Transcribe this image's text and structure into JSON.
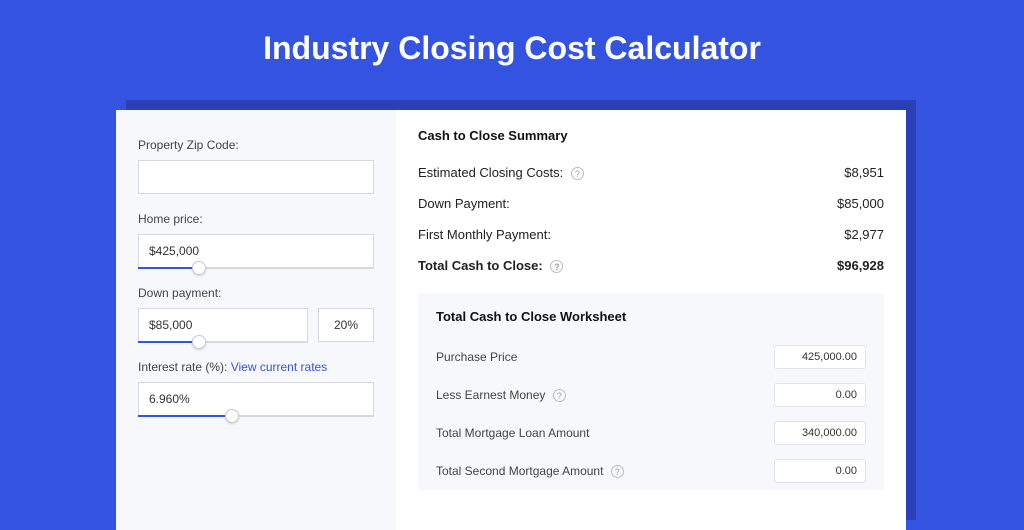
{
  "colors": {
    "page_bg": "#3453e0",
    "card_shadow": "#2a3fb8",
    "card_bg": "#ffffff",
    "panel_bg": "#f6f8fc",
    "input_border": "#d5d8de",
    "accent": "#3453e0",
    "text": "#333333",
    "muted": "#9aa0aa"
  },
  "title": "Industry Closing Cost Calculator",
  "left": {
    "zip": {
      "label": "Property Zip Code:",
      "value": ""
    },
    "home_price": {
      "label": "Home price:",
      "value": "$425,000",
      "slider_fill_pct": 26,
      "thumb_pct": 26
    },
    "down_payment": {
      "label": "Down payment:",
      "value": "$85,000",
      "pct": "20%",
      "slider_fill_pct": 36,
      "thumb_pct": 36
    },
    "interest": {
      "label": "Interest rate (%):",
      "link": "View current rates",
      "value": "6.960%",
      "slider_fill_pct": 40,
      "thumb_pct": 40
    }
  },
  "summary": {
    "title": "Cash to Close Summary",
    "rows": [
      {
        "label": "Estimated Closing Costs:",
        "help": true,
        "value": "$8,951",
        "bold": false
      },
      {
        "label": "Down Payment:",
        "help": false,
        "value": "$85,000",
        "bold": false
      },
      {
        "label": "First Monthly Payment:",
        "help": false,
        "value": "$2,977",
        "bold": false
      },
      {
        "label": "Total Cash to Close:",
        "help": true,
        "value": "$96,928",
        "bold": true
      }
    ]
  },
  "worksheet": {
    "title": "Total Cash to Close Worksheet",
    "rows": [
      {
        "label": "Purchase Price",
        "help": false,
        "value": "425,000.00"
      },
      {
        "label": "Less Earnest Money",
        "help": true,
        "value": "0.00"
      },
      {
        "label": "Total Mortgage Loan Amount",
        "help": false,
        "value": "340,000.00"
      },
      {
        "label": "Total Second Mortgage Amount",
        "help": true,
        "value": "0.00"
      }
    ]
  }
}
